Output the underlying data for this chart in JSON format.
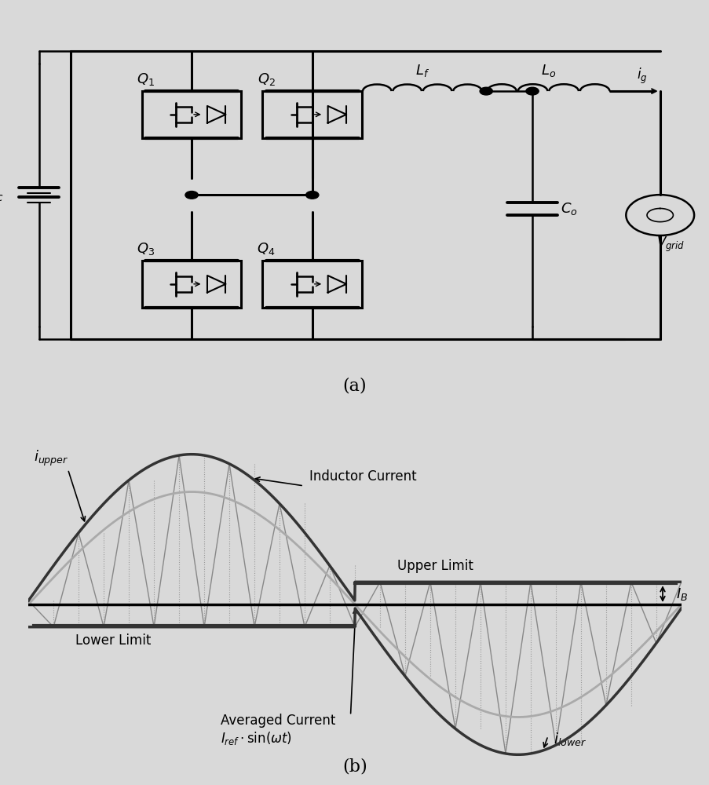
{
  "bg_color": "#d9d9d9",
  "fig_width": 9.04,
  "fig_height": 10.0,
  "label_a": "(a)",
  "label_b": "(b)",
  "upper_limit_label": "Upper Limit",
  "lower_limit_label": "Lower Limit",
  "inductor_current_label": "Inductor Current",
  "i_upper_label": "$i_{upper}$",
  "i_lower_label": "$i_{lower}$",
  "I_B_label": "$I_B$"
}
